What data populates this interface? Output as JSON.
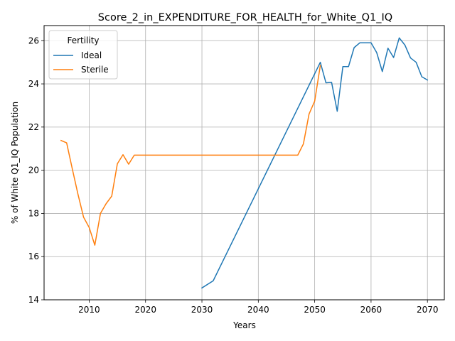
{
  "chart_data": {
    "type": "line",
    "title": "Score_2_in_EXPENDITURE_FOR_HEALTH_for_White_Q1_IQ",
    "xlabel": "Years",
    "ylabel": "% of White Q1_IQ Population",
    "xlim": [
      2002,
      2073
    ],
    "ylim": [
      14,
      26.7
    ],
    "xticks": [
      2010,
      2020,
      2030,
      2040,
      2050,
      2060,
      2070
    ],
    "yticks": [
      14,
      16,
      18,
      20,
      22,
      24,
      26
    ],
    "grid": true,
    "legend": {
      "title": "Fertility",
      "placement": "top-left"
    },
    "series": [
      {
        "name": "Ideal",
        "color": "#1f77b4",
        "x": [
          2030,
          2032,
          2051,
          2052,
          2053,
          2054,
          2055,
          2056,
          2057,
          2058,
          2059,
          2060,
          2061,
          2062,
          2063,
          2064,
          2065,
          2066,
          2067,
          2068,
          2069,
          2070
        ],
        "y": [
          14.55,
          14.88,
          25.0,
          24.05,
          24.07,
          22.73,
          24.8,
          24.8,
          25.68,
          25.9,
          25.9,
          25.9,
          25.45,
          24.57,
          25.65,
          25.22,
          26.13,
          25.8,
          25.2,
          25.0,
          24.33,
          24.18
        ]
      },
      {
        "name": "Sterile",
        "color": "#ff7f0e",
        "x": [
          2005,
          2006,
          2007,
          2008,
          2009,
          2010,
          2011,
          2012,
          2013,
          2014,
          2015,
          2016,
          2017,
          2018,
          2019,
          2047,
          2048,
          2049,
          2050,
          2051
        ],
        "y": [
          21.38,
          21.27,
          20.07,
          18.9,
          17.83,
          17.35,
          16.53,
          18.0,
          18.45,
          18.8,
          20.3,
          20.72,
          20.28,
          20.7,
          20.7,
          20.7,
          21.22,
          22.6,
          23.2,
          24.85
        ]
      }
    ]
  }
}
